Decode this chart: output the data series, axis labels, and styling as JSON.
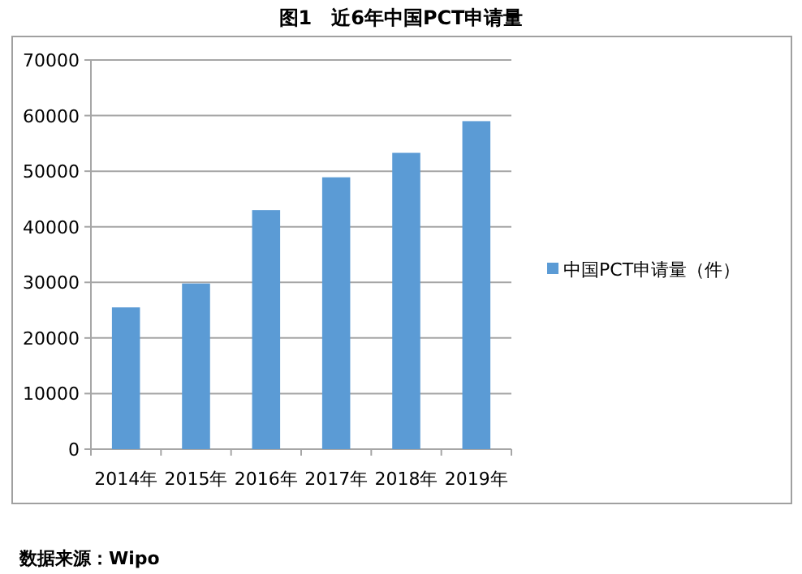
{
  "chart_data": {
    "type": "bar",
    "title": "图1　近6年中国PCT申请量",
    "categories": [
      "2014年",
      "2015年",
      "2016年",
      "2017年",
      "2018年",
      "2019年"
    ],
    "series": [
      {
        "name": "中国PCT申请量（件）",
        "color": "#5b9bd5",
        "values": [
          25500,
          29800,
          43000,
          48900,
          53300,
          59000
        ]
      }
    ],
    "ylim": [
      0,
      70000
    ],
    "yticks": [
      0,
      10000,
      20000,
      30000,
      40000,
      50000,
      60000,
      70000
    ],
    "grid": "y",
    "legend": "right",
    "annotations": [
      "数据来源：Wipo"
    ]
  }
}
